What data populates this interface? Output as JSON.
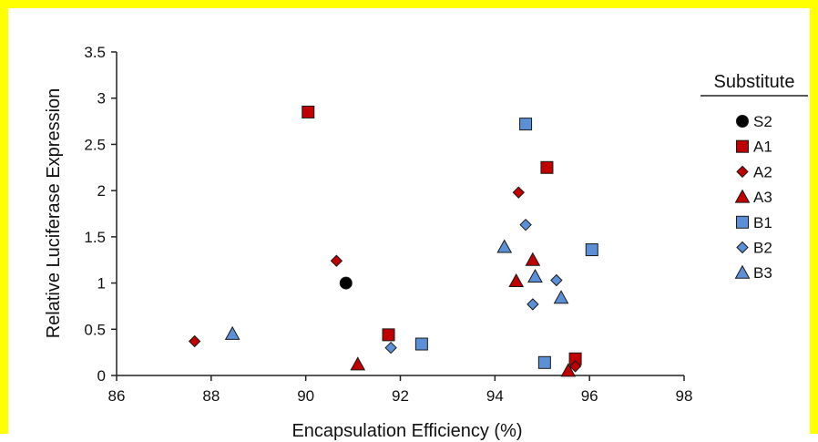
{
  "chart_data": {
    "type": "scatter",
    "xlabel": "Encapsulation Efficiency (%)",
    "ylabel": "Relative Luciferase Expression",
    "xlim": [
      86,
      98
    ],
    "ylim": [
      0,
      3.5
    ],
    "xticks": [
      86,
      88,
      90,
      92,
      94,
      96,
      98
    ],
    "yticks": [
      0,
      0.5,
      1,
      1.5,
      2,
      2.5,
      3,
      3.5
    ],
    "xtick_labels": [
      "86",
      "88",
      "90",
      "92",
      "94",
      "96",
      "98"
    ],
    "ytick_labels": [
      "0",
      "0.5",
      "1",
      "1.5",
      "2",
      "2.5",
      "3",
      "3.5"
    ],
    "grid": false,
    "legend": {
      "title": "Substitute",
      "position": "right"
    },
    "series": [
      {
        "name": "S2",
        "marker": "circle",
        "color": "#000000",
        "x": [
          90.85
        ],
        "y": [
          1.0
        ]
      },
      {
        "name": "A1",
        "marker": "square",
        "color": "#c00000",
        "x": [
          90.05,
          91.75,
          95.1,
          95.7
        ],
        "y": [
          2.85,
          0.44,
          2.25,
          0.18
        ]
      },
      {
        "name": "A2",
        "marker": "diamond",
        "color": "#c00000",
        "x": [
          87.65,
          90.65,
          94.5,
          95.7
        ],
        "y": [
          0.37,
          1.24,
          1.98,
          0.1
        ]
      },
      {
        "name": "A3",
        "marker": "triangle",
        "color": "#c00000",
        "x": [
          91.1,
          94.45,
          94.8,
          95.55
        ],
        "y": [
          0.12,
          1.02,
          1.25,
          0.05
        ]
      },
      {
        "name": "B1",
        "marker": "square",
        "color": "#5b8fd6",
        "x": [
          92.45,
          94.65,
          95.05,
          96.05
        ],
        "y": [
          0.34,
          2.72,
          0.14,
          1.36
        ]
      },
      {
        "name": "B2",
        "marker": "diamond",
        "color": "#5b8fd6",
        "x": [
          91.8,
          94.65,
          94.8,
          95.3
        ],
        "y": [
          0.3,
          1.63,
          0.77,
          1.03
        ]
      },
      {
        "name": "B3",
        "marker": "triangle",
        "color": "#5b8fd6",
        "x": [
          88.45,
          94.2,
          94.85,
          95.4
        ],
        "y": [
          0.45,
          1.39,
          1.07,
          0.84
        ]
      }
    ]
  }
}
